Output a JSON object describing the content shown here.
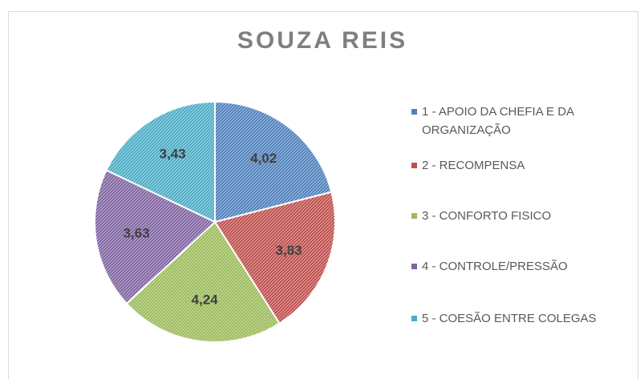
{
  "chart_data": {
    "type": "pie",
    "title": "SOUZA REIS",
    "categories": [
      "1 - APOIO DA CHEFIA E DA ORGANIZAÇÃO",
      "2 - RECOMPENSA",
      "3 - CONFORTO FISICO",
      "4 - CONTROLE/PRESSÃO",
      "5 - COESÃO ENTRE COLEGAS"
    ],
    "values": [
      4.02,
      3.83,
      4.24,
      3.63,
      3.43
    ],
    "value_labels": [
      "4,02",
      "3,83",
      "4,24",
      "3,63",
      "3,43"
    ],
    "colors": [
      "#4f81bd",
      "#c0504d",
      "#9bbb59",
      "#8064a2",
      "#4bacc6"
    ],
    "legend": "right"
  }
}
